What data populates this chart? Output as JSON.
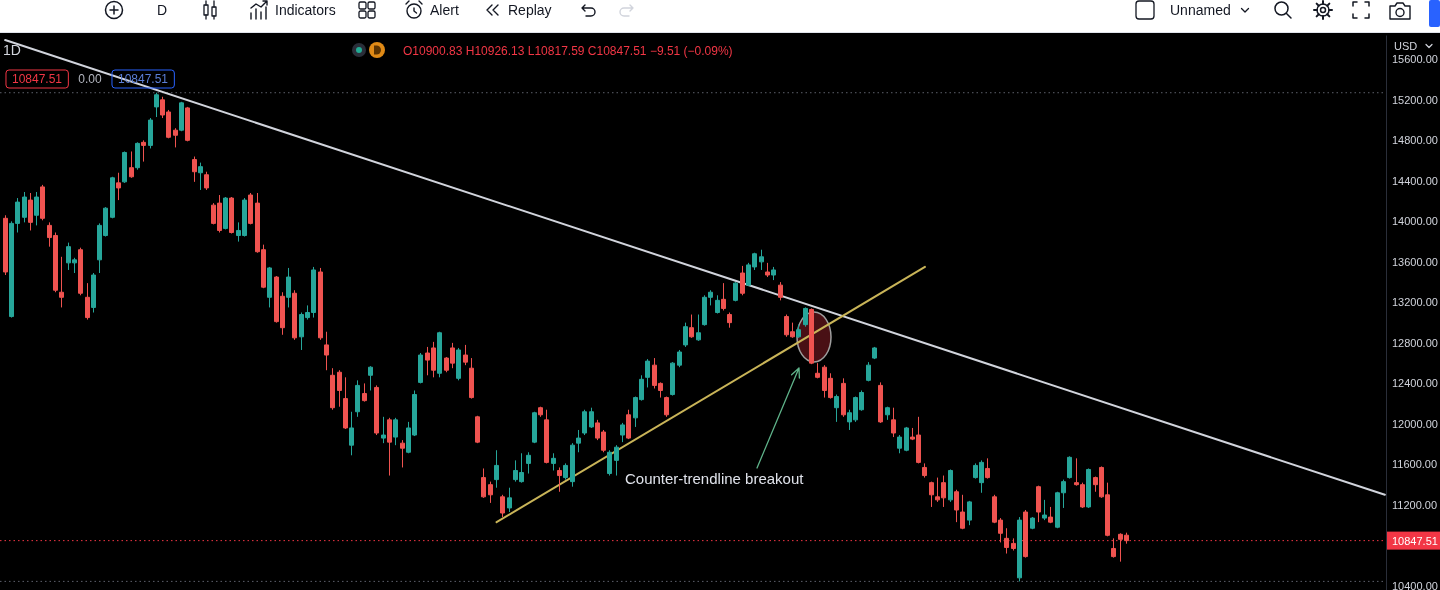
{
  "chart_data": {
    "type": "candlestick",
    "title": "1D",
    "ylabel": "USD",
    "categories": [
      null,
      null,
      null,
      null,
      null,
      null,
      null,
      null,
      null,
      null,
      null,
      null,
      null,
      null,
      null,
      null,
      null,
      null,
      null,
      null,
      null,
      null,
      null,
      null,
      null,
      null,
      null,
      null,
      null,
      null,
      null,
      null,
      null,
      null,
      null,
      null,
      null,
      null,
      null,
      null,
      null,
      null,
      null,
      null,
      null,
      null,
      null,
      null,
      null,
      null,
      null,
      null,
      null,
      null,
      null,
      null,
      null,
      null,
      null,
      null,
      null,
      null,
      null,
      null,
      null,
      null,
      null,
      null,
      null,
      null,
      null,
      null,
      null,
      null,
      null,
      null,
      null,
      null,
      null,
      null,
      null,
      null,
      null,
      null,
      null,
      null,
      null,
      null,
      null,
      null,
      null,
      null,
      null,
      null,
      null,
      null,
      null,
      null,
      null,
      null,
      null,
      null,
      null,
      null,
      null,
      null,
      null,
      null,
      null,
      null,
      null,
      null,
      null,
      null,
      null,
      null,
      null,
      null,
      null,
      null,
      null,
      null,
      null,
      null,
      null,
      null,
      null,
      null,
      null,
      null,
      null,
      null,
      null,
      null,
      null,
      null,
      null,
      null,
      null,
      null,
      null,
      null,
      null,
      null,
      null,
      null,
      null,
      null,
      null,
      null,
      null,
      null,
      null,
      null,
      null,
      null,
      null,
      null,
      null,
      null,
      null,
      null,
      null,
      null,
      null,
      null,
      null,
      null,
      null,
      null,
      null,
      null,
      null,
      null,
      null,
      null,
      null,
      null,
      null,
      null,
      null,
      null,
      null,
      null,
      null,
      null,
      null,
      null,
      null,
      null,
      null,
      null,
      null,
      null,
      null,
      null,
      null,
      null,
      null,
      null,
      null,
      null,
      null,
      null,
      null,
      null,
      null,
      null,
      null,
      null,
      null,
      null,
      null,
      null,
      null,
      null,
      null,
      null,
      null,
      null
    ],
    "ohlc": [
      [
        14030,
        14060,
        13470,
        13500
      ],
      [
        13060,
        14000,
        13050,
        13980
      ],
      [
        13980,
        14230,
        13890,
        14190
      ],
      [
        14040,
        14290,
        13990,
        14240
      ],
      [
        14210,
        14280,
        13910,
        13990
      ],
      [
        14060,
        14290,
        13960,
        14240
      ],
      [
        14340,
        14360,
        14010,
        14030
      ],
      [
        13960,
        13990,
        13750,
        13840
      ],
      [
        13860,
        13890,
        13300,
        13320
      ],
      [
        13300,
        13650,
        13150,
        13250
      ],
      [
        13590,
        13790,
        13520,
        13750
      ],
      [
        13590,
        13640,
        13490,
        13620
      ],
      [
        13720,
        13740,
        13270,
        13290
      ],
      [
        13250,
        13390,
        13030,
        13050
      ],
      [
        13150,
        13490,
        13100,
        13470
      ],
      [
        13620,
        13980,
        13490,
        13960
      ],
      [
        13860,
        14140,
        13850,
        14130
      ],
      [
        14040,
        14440,
        14030,
        14430
      ],
      [
        14380,
        14480,
        14210,
        14330
      ],
      [
        14390,
        14690,
        14380,
        14680
      ],
      [
        14530,
        14690,
        14430,
        14440
      ],
      [
        14530,
        14780,
        14510,
        14770
      ],
      [
        14780,
        14800,
        14590,
        14750
      ],
      [
        14750,
        15020,
        14720,
        15000
      ],
      [
        15130,
        15270,
        15030,
        15250
      ],
      [
        15200,
        15230,
        15020,
        15050
      ],
      [
        15080,
        15100,
        14820,
        14830
      ],
      [
        14900,
        14920,
        14730,
        14850
      ],
      [
        14900,
        15180,
        14890,
        15170
      ],
      [
        15120,
        15130,
        14790,
        14800
      ],
      [
        14610,
        14640,
        14390,
        14490
      ],
      [
        14480,
        14580,
        14310,
        14540
      ],
      [
        14460,
        14490,
        14310,
        14330
      ],
      [
        14160,
        14180,
        13970,
        13980
      ],
      [
        14180,
        14260,
        13890,
        13910
      ],
      [
        13930,
        14240,
        13920,
        14230
      ],
      [
        14230,
        14240,
        13880,
        13890
      ],
      [
        13860,
        13990,
        13800,
        13910
      ],
      [
        13860,
        14230,
        13850,
        14210
      ],
      [
        14260,
        14280,
        13970,
        13980
      ],
      [
        14180,
        14280,
        13690,
        13700
      ],
      [
        13720,
        13770,
        13340,
        13350
      ],
      [
        13250,
        13550,
        13150,
        13540
      ],
      [
        13450,
        13460,
        13000,
        13010
      ],
      [
        13260,
        13300,
        12880,
        12950
      ],
      [
        13250,
        13540,
        13150,
        13450
      ],
      [
        13290,
        13320,
        12830,
        12850
      ],
      [
        12860,
        13100,
        12730,
        13080
      ],
      [
        13050,
        13170,
        13030,
        13100
      ],
      [
        13100,
        13550,
        13050,
        13520
      ],
      [
        13500,
        13540,
        12830,
        12850
      ],
      [
        12780,
        12910,
        12530,
        12680
      ],
      [
        12480,
        12550,
        12140,
        12160
      ],
      [
        12510,
        12530,
        12170,
        12330
      ],
      [
        12250,
        12460,
        11950,
        11960
      ],
      [
        11790,
        12120,
        11690,
        11960
      ],
      [
        12120,
        12430,
        12070,
        12380
      ],
      [
        12300,
        12400,
        12220,
        12230
      ],
      [
        12480,
        12570,
        12330,
        12560
      ],
      [
        12360,
        12380,
        11890,
        11910
      ],
      [
        11860,
        12070,
        11810,
        11890
      ],
      [
        12040,
        12060,
        11490,
        11820
      ],
      [
        11870,
        12060,
        11790,
        12040
      ],
      [
        11810,
        11840,
        11570,
        11760
      ],
      [
        11720,
        12020,
        11710,
        11960
      ],
      [
        11890,
        12330,
        11880,
        12290
      ],
      [
        12410,
        12700,
        12400,
        12680
      ],
      [
        12700,
        12760,
        12480,
        12630
      ],
      [
        12750,
        12810,
        12460,
        12530
      ],
      [
        12500,
        12910,
        12460,
        12900
      ],
      [
        12650,
        12660,
        12510,
        12530
      ],
      [
        12750,
        12800,
        12550,
        12600
      ],
      [
        12450,
        12750,
        12430,
        12730
      ],
      [
        12680,
        12780,
        12580,
        12610
      ],
      [
        12550,
        12650,
        12250,
        12260
      ],
      [
        12070,
        12080,
        11810,
        11820
      ],
      [
        11470,
        11560,
        11270,
        11280
      ],
      [
        11400,
        11430,
        11220,
        11300
      ],
      [
        11450,
        11740,
        11370,
        11590
      ],
      [
        11280,
        11300,
        11080,
        11120
      ],
      [
        11170,
        11370,
        11130,
        11270
      ],
      [
        11450,
        11640,
        11430,
        11540
      ],
      [
        11430,
        11710,
        11420,
        11520
      ],
      [
        11610,
        11720,
        11510,
        11690
      ],
      [
        11820,
        12120,
        11810,
        12110
      ],
      [
        12160,
        12170,
        12070,
        12090
      ],
      [
        12040,
        12140,
        11610,
        11620
      ],
      [
        11610,
        11710,
        11540,
        11660
      ],
      [
        11540,
        11570,
        11330,
        11490
      ],
      [
        11470,
        11610,
        11450,
        11590
      ],
      [
        11430,
        11810,
        11380,
        11790
      ],
      [
        11810,
        11940,
        11720,
        11860
      ],
      [
        11910,
        12140,
        11890,
        12120
      ],
      [
        11970,
        12160,
        11960,
        12120
      ],
      [
        12010,
        12040,
        11840,
        11860
      ],
      [
        11920,
        11940,
        11720,
        11740
      ],
      [
        11510,
        11740,
        11490,
        11720
      ],
      [
        11640,
        11790,
        11490,
        11770
      ],
      [
        11890,
        12010,
        11820,
        11990
      ],
      [
        12090,
        12140,
        11850,
        11860
      ],
      [
        12060,
        12270,
        11970,
        12260
      ],
      [
        12240,
        12480,
        12230,
        12440
      ],
      [
        12460,
        12640,
        12360,
        12620
      ],
      [
        12580,
        12650,
        12350,
        12380
      ],
      [
        12400,
        12410,
        12260,
        12330
      ],
      [
        12260,
        12270,
        12070,
        12090
      ],
      [
        12290,
        12610,
        12280,
        12600
      ],
      [
        12580,
        12730,
        12560,
        12710
      ],
      [
        12780,
        13000,
        12760,
        12960
      ],
      [
        12950,
        13080,
        12850,
        12860
      ],
      [
        12830,
        13080,
        12820,
        12900
      ],
      [
        12980,
        13270,
        12970,
        13250
      ],
      [
        13250,
        13320,
        13170,
        13300
      ],
      [
        13100,
        13270,
        13090,
        13220
      ],
      [
        13230,
        13390,
        13120,
        13140
      ],
      [
        13080,
        13100,
        12950,
        13000
      ],
      [
        13220,
        13400,
        13210,
        13390
      ],
      [
        13490,
        13560,
        13270,
        13290
      ],
      [
        13370,
        13590,
        13360,
        13570
      ],
      [
        13550,
        13690,
        13520,
        13680
      ],
      [
        13600,
        13720,
        13520,
        13650
      ],
      [
        13500,
        13590,
        13450,
        13470
      ],
      [
        13470,
        13550,
        13420,
        13520
      ],
      [
        13370,
        13400,
        13220,
        13250
      ],
      [
        13060,
        13080,
        12860,
        12880
      ],
      [
        12910,
        13000,
        12850,
        12860
      ],
      [
        12860,
        12980,
        12850,
        12930
      ],
      [
        12980,
        13150,
        12960,
        13140
      ],
      [
        13130,
        13140,
        12590,
        12600
      ],
      [
        12500,
        12600,
        12450,
        12460
      ],
      [
        12560,
        12580,
        12260,
        12330
      ],
      [
        12450,
        12500,
        12250,
        12260
      ],
      [
        12160,
        12290,
        12020,
        12270
      ],
      [
        12400,
        12450,
        12070,
        12090
      ],
      [
        12020,
        12140,
        11940,
        12110
      ],
      [
        12040,
        12270,
        12020,
        12260
      ],
      [
        12140,
        12330,
        12130,
        12310
      ],
      [
        12430,
        12610,
        12420,
        12580
      ],
      [
        12650,
        12760,
        12640,
        12750
      ],
      [
        12380,
        12410,
        12010,
        12020
      ],
      [
        12090,
        12170,
        12040,
        12160
      ],
      [
        12040,
        12160,
        11870,
        11910
      ],
      [
        11760,
        11890,
        11710,
        11870
      ],
      [
        11740,
        11970,
        11730,
        11960
      ],
      [
        11870,
        11960,
        11840,
        11850
      ],
      [
        11890,
        12070,
        11610,
        11620
      ],
      [
        11570,
        11610,
        11470,
        11490
      ],
      [
        11420,
        11430,
        11180,
        11300
      ],
      [
        11280,
        11470,
        11230,
        11250
      ],
      [
        11420,
        11490,
        11180,
        11270
      ],
      [
        11250,
        11550,
        11230,
        11540
      ],
      [
        11330,
        11350,
        11030,
        11150
      ],
      [
        11130,
        11300,
        10960,
        10970
      ],
      [
        11050,
        11240,
        11000,
        11230
      ],
      [
        11470,
        11610,
        11460,
        11590
      ],
      [
        11420,
        11640,
        11320,
        11620
      ],
      [
        11560,
        11660,
        11460,
        11470
      ],
      [
        11280,
        11300,
        11020,
        11030
      ],
      [
        11050,
        11070,
        10830,
        10920
      ],
      [
        10870,
        10970,
        10720,
        10780
      ],
      [
        10820,
        10870,
        10750,
        10770
      ],
      [
        10480,
        11080,
        10445,
        11050
      ],
      [
        11130,
        11150,
        10680,
        10690
      ],
      [
        10970,
        11080,
        10960,
        11070
      ],
      [
        11380,
        11390,
        11030,
        11130
      ],
      [
        11070,
        11250,
        11050,
        11100
      ],
      [
        11080,
        11180,
        11020,
        11030
      ],
      [
        10980,
        11330,
        10970,
        11320
      ],
      [
        11320,
        11450,
        11170,
        11430
      ],
      [
        11470,
        11680,
        11460,
        11670
      ],
      [
        11420,
        11660,
        11390,
        11400
      ],
      [
        11400,
        11420,
        11170,
        11180
      ],
      [
        11180,
        11560,
        11170,
        11550
      ],
      [
        11470,
        11480,
        11330,
        11400
      ],
      [
        11570,
        11580,
        11270,
        11280
      ],
      [
        11300,
        11420,
        10890,
        10900
      ],
      [
        10770,
        10870,
        10680,
        10690
      ],
      [
        10910,
        10920,
        10640,
        10860
      ],
      [
        10900.83,
        10926.13,
        10817.59,
        10847.51
      ],
      null,
      null,
      null,
      null,
      null,
      null,
      null,
      null,
      null,
      null,
      null,
      null,
      null,
      null,
      null,
      null,
      null,
      null,
      null,
      null,
      null,
      null,
      null,
      null,
      null,
      null,
      null,
      null,
      null,
      null,
      null,
      null,
      null,
      null,
      null,
      null,
      null,
      null,
      null,
      null,
      null
    ],
    "colors": [
      "#ef5350",
      "#26a69a",
      "#26a69a",
      "#26a69a",
      "#ef5350",
      "#26a69a",
      "#ef5350",
      "#ef5350",
      "#ef5350",
      "#ef5350",
      "#26a69a",
      "#26a69a",
      "#ef5350",
      "#ef5350",
      "#26a69a",
      "#26a69a",
      "#26a69a",
      "#26a69a",
      "#ef5350",
      "#26a69a",
      "#ef5350",
      "#26a69a",
      "#ef5350",
      "#26a69a",
      "#26a69a",
      "#ef5350",
      "#ef5350",
      "#ef5350",
      "#26a69a",
      "#ef5350",
      "#ef5350",
      "#26a69a",
      "#ef5350",
      "#ef5350",
      "#ef5350",
      "#26a69a",
      "#ef5350",
      "#26a69a",
      "#26a69a",
      "#ef5350",
      "#ef5350",
      "#ef5350",
      "#26a69a",
      "#ef5350",
      "#ef5350",
      "#26a69a",
      "#ef5350",
      "#26a69a",
      "#26a69a",
      "#26a69a",
      "#ef5350",
      "#ef5350",
      "#ef5350",
      "#ef5350",
      "#ef5350",
      "#26a69a",
      "#26a69a",
      "#ef5350",
      "#26a69a",
      "#ef5350",
      "#26a69a",
      "#ef5350",
      "#26a69a",
      "#ef5350",
      "#26a69a",
      "#26a69a",
      "#26a69a",
      "#ef5350",
      "#ef5350",
      "#26a69a",
      "#ef5350",
      "#ef5350",
      "#26a69a",
      "#ef5350",
      "#ef5350",
      "#ef5350",
      "#ef5350",
      "#ef5350",
      "#26a69a",
      "#ef5350",
      "#26a69a",
      "#26a69a",
      "#26a69a",
      "#26a69a",
      "#26a69a",
      "#ef5350",
      "#ef5350",
      "#26a69a",
      "#ef5350",
      "#26a69a",
      "#26a69a",
      "#26a69a",
      "#26a69a",
      "#26a69a",
      "#ef5350",
      "#ef5350",
      "#26a69a",
      "#26a69a",
      "#26a69a",
      "#ef5350",
      "#26a69a",
      "#26a69a",
      "#26a69a",
      "#ef5350",
      "#ef5350",
      "#ef5350",
      "#26a69a",
      "#26a69a",
      "#26a69a",
      "#ef5350",
      "#26a69a",
      "#26a69a",
      "#26a69a",
      "#26a69a",
      "#ef5350",
      "#ef5350",
      "#26a69a",
      "#ef5350",
      "#26a69a",
      "#26a69a",
      "#26a69a",
      "#ef5350",
      "#26a69a",
      "#ef5350",
      "#ef5350",
      "#ef5350",
      "#26a69a",
      "#26a69a",
      "#ef5350",
      "#ef5350",
      "#ef5350",
      "#ef5350",
      "#26a69a",
      "#ef5350",
      "#26a69a",
      "#26a69a",
      "#26a69a",
      "#26a69a",
      "#26a69a",
      "#ef5350",
      "#26a69a",
      "#ef5350",
      "#26a69a",
      "#26a69a",
      "#ef5350",
      "#ef5350",
      "#ef5350",
      "#ef5350",
      "#ef5350",
      "#ef5350",
      "#26a69a",
      "#ef5350",
      "#ef5350",
      "#26a69a",
      "#26a69a",
      "#26a69a",
      "#ef5350",
      "#ef5350",
      "#ef5350",
      "#ef5350",
      "#ef5350",
      "#26a69a",
      "#ef5350",
      "#26a69a",
      "#ef5350",
      "#26a69a",
      "#ef5350",
      "#26a69a",
      "#26a69a",
      "#26a69a",
      "#ef5350",
      "#ef5350",
      "#26a69a",
      "#ef5350",
      "#ef5350",
      "#ef5350",
      "#ef5350",
      "#ef5350",
      "#ef5350",
      null,
      null,
      null,
      null,
      null,
      null,
      null,
      null,
      null,
      null,
      null,
      null,
      null,
      null,
      null,
      null,
      null,
      null,
      null,
      null,
      null,
      null,
      null,
      null,
      null,
      null,
      null,
      null,
      null,
      null,
      null,
      null,
      null,
      null,
      null,
      null,
      null,
      null,
      null,
      null,
      null
    ],
    "series": [
      {
        "type": "line",
        "color": "#d1d4dc",
        "values": [
          15790,
          null,
          null,
          null,
          null,
          null,
          null,
          null,
          null,
          null,
          null,
          null,
          null,
          null,
          null,
          null,
          null,
          null,
          null,
          null,
          null,
          null,
          null,
          null,
          null,
          null,
          null,
          null,
          null,
          null,
          null,
          null,
          null,
          null,
          null,
          null,
          null,
          null,
          null,
          null,
          null,
          null,
          null,
          null,
          null,
          null,
          null,
          null,
          null,
          null,
          null,
          null,
          null,
          null,
          null,
          null,
          null,
          null,
          null,
          null,
          null,
          null,
          null,
          null,
          null,
          null,
          null,
          null,
          null,
          null,
          null,
          null,
          null,
          null,
          null,
          null,
          null,
          null,
          null,
          null,
          null,
          null,
          null,
          null,
          null,
          null,
          null,
          null,
          null,
          null,
          null,
          null,
          null,
          null,
          null,
          null,
          null,
          null,
          null,
          null,
          null,
          null,
          null,
          null,
          null,
          null,
          null,
          null,
          null,
          null,
          null,
          null,
          null,
          null,
          null,
          null,
          null,
          null,
          null,
          null,
          null,
          null,
          null,
          null,
          null,
          null,
          null,
          null,
          null,
          null,
          null,
          null,
          null,
          null,
          null,
          null,
          null,
          null,
          null,
          null,
          null,
          null,
          null,
          null,
          null,
          null,
          null,
          null,
          null,
          null,
          null,
          null,
          null,
          null,
          null,
          null,
          null,
          null,
          null,
          null,
          null,
          null,
          null,
          null,
          null,
          null,
          null,
          null,
          null,
          null,
          null,
          null,
          null,
          null,
          null,
          null,
          null,
          null,
          null,
          null,
          null,
          null,
          null,
          null,
          null,
          null,
          null,
          null,
          null,
          null,
          null,
          null,
          null,
          null,
          null,
          null,
          null,
          null,
          null,
          null,
          null,
          null,
          null,
          null,
          null,
          null,
          null,
          null,
          null,
          null,
          null,
          null,
          null,
          null,
          null,
          null,
          null,
          null,
          null,
          11300
        ]
      },
      {
        "type": "line",
        "color": "#c9b458",
        "values": [
          null,
          null,
          null,
          null,
          null,
          null,
          null,
          null,
          null,
          null,
          null,
          null,
          null,
          null,
          null,
          null,
          null,
          null,
          null,
          null,
          null,
          null,
          null,
          null,
          null,
          null,
          null,
          null,
          null,
          null,
          null,
          null,
          null,
          null,
          null,
          null,
          null,
          null,
          null,
          null,
          null,
          null,
          null,
          null,
          null,
          null,
          null,
          null,
          null,
          null,
          null,
          null,
          null,
          null,
          null,
          null,
          null,
          null,
          null,
          null,
          null,
          null,
          null,
          null,
          null,
          null,
          null,
          null,
          null,
          null,
          null,
          null,
          null,
          null,
          null,
          null,
          null,
          null,
          11030,
          null,
          null,
          null,
          null,
          null,
          null,
          null,
          null,
          null,
          null,
          null,
          null,
          null,
          null,
          null,
          null,
          null,
          null,
          null,
          null,
          null,
          null,
          null,
          null,
          null,
          null,
          null,
          null,
          null,
          null,
          null,
          null,
          null,
          null,
          null,
          null,
          null,
          null,
          null,
          null,
          null,
          null,
          null,
          null,
          null,
          null,
          null,
          null,
          null,
          null,
          null,
          null,
          null,
          null,
          null,
          null,
          null,
          null,
          null,
          null,
          null,
          null,
          null,
          null,
          null,
          null,
          null,
          13550,
          null,
          null,
          null,
          null,
          null,
          null,
          null,
          null,
          null,
          null,
          null,
          null,
          null,
          null,
          null,
          null,
          null,
          null,
          null,
          null,
          null,
          null,
          null,
          null,
          null,
          null,
          null,
          null,
          null,
          null,
          null,
          null,
          null,
          null,
          null,
          null,
          null,
          null,
          null,
          null,
          null,
          null,
          null,
          null,
          null,
          null,
          null,
          null,
          null,
          null,
          null,
          null,
          null,
          null,
          null,
          null,
          null,
          null,
          null,
          null,
          null,
          null,
          null,
          null,
          null,
          null,
          null,
          null,
          null,
          null,
          null,
          null,
          null
        ]
      }
    ],
    "ylim": [
      10360,
      15840
    ],
    "yticks": [
      {
        "value": 15600,
        "label": "15600.00"
      },
      {
        "value": 15200,
        "label": "15200.00"
      },
      {
        "value": 14800,
        "label": "14800.00"
      },
      {
        "value": 14400,
        "label": "14400.00"
      },
      {
        "value": 14000,
        "label": "14000.00"
      },
      {
        "value": 13600,
        "label": "13600.00"
      },
      {
        "value": 13200,
        "label": "13200.00"
      },
      {
        "value": 12800,
        "label": "12800.00"
      },
      {
        "value": 12400,
        "label": "12400.00"
      },
      {
        "value": 12000,
        "label": "12000.00"
      },
      {
        "value": 11600,
        "label": "11600.00"
      },
      {
        "value": 11200,
        "label": "11200.00"
      },
      {
        "value": 10400,
        "label": "10400.00"
      }
    ],
    "tick_labels": "y",
    "ref_lines": [
      {
        "axis": "y",
        "value": 15270,
        "color": "#5d606b",
        "line_style": "dotted"
      },
      {
        "axis": "y",
        "value": 10445,
        "color": "#5d606b",
        "line_style": "dotted"
      },
      {
        "axis": "y",
        "value": 10847.51,
        "label": "10847.51",
        "color": "#f23645",
        "line_style": "dotted"
      }
    ],
    "annotations": [
      "D",
      "Indicators",
      "Alert",
      "Replay",
      "Unnamed",
      "O10900.83 H10926.13 L10817.59 C10847.51 −9.51 (−0.09%)",
      "10847.51",
      "0.00",
      "10847.51",
      "Counter-trendline breakout"
    ]
  }
}
